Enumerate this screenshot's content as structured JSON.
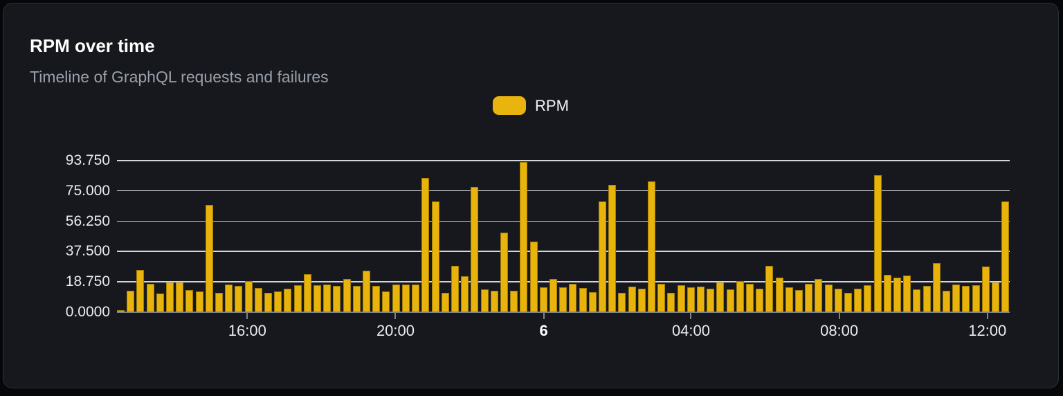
{
  "card": {
    "title": "RPM over time",
    "subtitle": "Timeline of GraphQL requests and failures"
  },
  "legend": {
    "label": "RPM",
    "swatch_color": "#e9b40e"
  },
  "colors": {
    "card_background": "#16181d",
    "page_background": "#060709",
    "bar": "#e8b30b",
    "gridline": "#e4e7ee",
    "axis": "#7e828b",
    "title_text": "#ffffff",
    "subtitle_text": "#9aa0ab",
    "axis_label_text": "#eaecf1"
  },
  "chart_data": {
    "type": "bar",
    "title": "RPM over time",
    "subtitle": "Timeline of GraphQL requests and failures",
    "series_name": "RPM",
    "xlabel": "",
    "ylabel": "",
    "ylim": [
      0,
      93.75
    ],
    "grid": true,
    "legend_position": "top-center",
    "y_ticks_top_to_bottom": [
      "93.750",
      "75.000",
      "56.250",
      "37.500",
      "18.750",
      "0.0000"
    ],
    "x_ticks": [
      {
        "label": "16:00",
        "pct": 14.6,
        "bold": false
      },
      {
        "label": "20:00",
        "pct": 31.2,
        "bold": false
      },
      {
        "label": "6",
        "pct": 47.8,
        "bold": true
      },
      {
        "label": "04:00",
        "pct": 64.3,
        "bold": false
      },
      {
        "label": "08:00",
        "pct": 80.9,
        "bold": false
      },
      {
        "label": "12:00",
        "pct": 97.5,
        "bold": false
      }
    ],
    "values": [
      1.5,
      13.3,
      26.3,
      17.6,
      11.5,
      18.3,
      18.3,
      13.7,
      13.0,
      66.5,
      12.2,
      17.3,
      16.1,
      19.2,
      15.2,
      12.0,
      12.7,
      14.4,
      16.6,
      23.5,
      16.9,
      17.3,
      16.1,
      20.6,
      16.1,
      25.7,
      16.1,
      12.7,
      17.0,
      17.0,
      17.0,
      83.0,
      68.3,
      12.2,
      28.9,
      22.1,
      77.4,
      14.2,
      13.3,
      49.3,
      13.3,
      92.8,
      43.6,
      15.6,
      20.5,
      15.6,
      17.6,
      15.1,
      12.5,
      68.3,
      78.7,
      12.0,
      15.9,
      14.7,
      81.0,
      17.7,
      11.8,
      16.6,
      15.4,
      15.9,
      14.7,
      18.5,
      14.1,
      19.2,
      17.6,
      14.7,
      28.9,
      21.6,
      15.6,
      13.7,
      17.6,
      20.6,
      17.3,
      14.4,
      12.0,
      14.7,
      16.9,
      84.9,
      23.1,
      21.2,
      22.8,
      14.1,
      16.1,
      30.6,
      13.3,
      17.0,
      16.1,
      16.6,
      28.4,
      18.4,
      68.7
    ]
  }
}
